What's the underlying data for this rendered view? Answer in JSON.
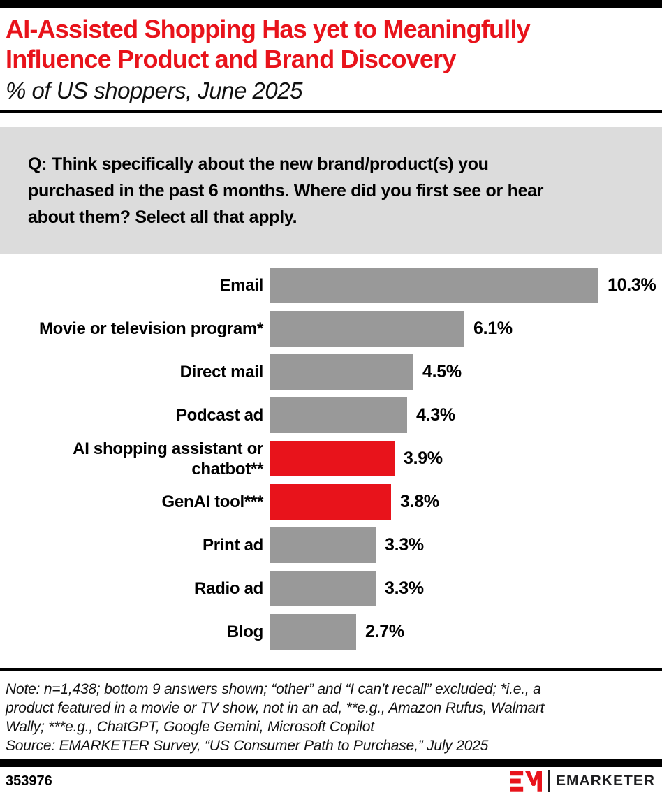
{
  "header": {
    "title": "AI-Assisted Shopping Has yet to Meaningfully\nInfluence Product and Brand Discovery",
    "subtitle": "% of US shoppers, June 2025"
  },
  "question": "Q: Think specifically about the new brand/product(s) you\npurchased in the past 6 months. Where did you first see or hear\nabout them? Select all that apply.",
  "chart_data": {
    "type": "bar",
    "orientation": "horizontal",
    "title": "AI-Assisted Shopping Has yet to Meaningfully Influence Product and Brand Discovery",
    "subtitle": "% of US shoppers, June 2025",
    "categories": [
      "Email",
      "Movie or television program*",
      "Direct mail",
      "Podcast ad",
      "AI shopping assistant or chatbot**",
      "GenAI tool***",
      "Print ad",
      "Radio ad",
      "Blog"
    ],
    "values": [
      10.3,
      6.1,
      4.5,
      4.3,
      3.9,
      3.8,
      3.3,
      3.3,
      2.7
    ],
    "value_labels": [
      "10.3%",
      "6.1%",
      "4.5%",
      "4.3%",
      "3.9%",
      "3.8%",
      "3.3%",
      "3.3%",
      "2.7%"
    ],
    "highlight": [
      false,
      false,
      false,
      false,
      true,
      true,
      false,
      false,
      false
    ],
    "default_color": "#999999",
    "highlight_color": "#e8131b",
    "xlabel": "",
    "ylabel": "",
    "xlim": [
      0,
      10.3
    ],
    "grid": false,
    "legend": false
  },
  "note": "Note: n=1,438; bottom 9 answers shown; “other” and “I can’t recall” excluded; *i.e., a\nproduct featured in a movie or TV show, not in an ad, **e.g., Amazon Rufus, Walmart\nWally; ***e.g., ChatGPT, Google Gemini, Microsoft Copilot",
  "source": "Source: EMARKETER Survey, “US Consumer Path to Purchase,” July 2025",
  "footer": {
    "chart_id": "353976",
    "brand": "EMARKETER"
  },
  "colors": {
    "accent_red": "#e8131b",
    "bar_gray": "#999999",
    "question_box_bg": "#dcdcdc",
    "rule_black": "#000000"
  }
}
